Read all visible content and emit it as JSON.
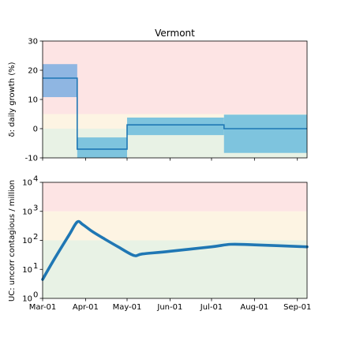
{
  "chart_data": [
    {
      "type": "step",
      "title": "Vermont",
      "ylabel": "δ: daily growth (%)",
      "ylim": [
        -10,
        30
      ],
      "yticks": [
        -10,
        0,
        10,
        20,
        30
      ],
      "xlim": [
        "2020-03-01",
        "2020-09-08"
      ],
      "xticks": [
        "2020-03-01",
        "2020-04-01",
        "2020-05-01",
        "2020-06-01",
        "2020-07-01",
        "2020-08-01",
        "2020-09-01"
      ],
      "background_bands": [
        {
          "y0": 5,
          "y1": 30,
          "color": "#fde4e4"
        },
        {
          "y0": 0,
          "y1": 5,
          "color": "#fdf4e3"
        },
        {
          "y0": -10,
          "y1": 0,
          "color": "#e8f2e5"
        }
      ],
      "segments": [
        {
          "start": "2020-03-01",
          "end": "2020-03-26",
          "value": 17.3,
          "low": 10.8,
          "high": 22.1,
          "band_color": "#8fb6e2"
        },
        {
          "start": "2020-03-26",
          "end": "2020-05-01",
          "value": -7.0,
          "low": -10.8,
          "high": -3.0,
          "band_color": "#7ec4de"
        },
        {
          "start": "2020-05-01",
          "end": "2020-07-10",
          "value": 1.3,
          "low": -2.2,
          "high": 3.8,
          "band_color": "#7ec4de"
        },
        {
          "start": "2020-07-10",
          "end": "2020-09-08",
          "value": 0.0,
          "low": -8.3,
          "high": 4.8,
          "band_color": "#7ec4de"
        }
      ],
      "line_color": "#1f77b4"
    },
    {
      "type": "line",
      "ylabel": "UC: uncorr contagious / million",
      "yscale": "log",
      "ylim": [
        1,
        10000
      ],
      "yticks": [
        {
          "value": 1,
          "base": "10",
          "exp": "0"
        },
        {
          "value": 10,
          "base": "10",
          "exp": "1"
        },
        {
          "value": 100,
          "base": "10",
          "exp": "2"
        },
        {
          "value": 1000,
          "base": "10",
          "exp": "3"
        },
        {
          "value": 10000,
          "base": "10",
          "exp": "4"
        }
      ],
      "xlim": [
        "2020-03-01",
        "2020-09-08"
      ],
      "xticks": [
        {
          "date": "2020-03-01",
          "label": "Mar-01"
        },
        {
          "date": "2020-04-01",
          "label": "Apr-01"
        },
        {
          "date": "2020-05-01",
          "label": "May-01"
        },
        {
          "date": "2020-06-01",
          "label": "Jun-01"
        },
        {
          "date": "2020-07-01",
          "label": "Jul-01"
        },
        {
          "date": "2020-08-01",
          "label": "Aug-01"
        },
        {
          "date": "2020-09-01",
          "label": "Sep-01"
        }
      ],
      "background_bands": [
        {
          "y0": 1000,
          "y1": 10000,
          "color": "#fde4e4"
        },
        {
          "y0": 100,
          "y1": 1000,
          "color": "#fdf4e3"
        },
        {
          "y0": 1,
          "y1": 100,
          "color": "#e8f2e5"
        }
      ],
      "series": [
        {
          "color": "#1f77b4",
          "x": [
            "2020-03-01",
            "2020-03-10",
            "2020-03-20",
            "2020-03-26",
            "2020-03-30",
            "2020-04-06",
            "2020-04-15",
            "2020-04-25",
            "2020-05-06",
            "2020-05-12",
            "2020-06-01",
            "2020-07-01",
            "2020-07-15",
            "2020-08-01",
            "2020-09-08"
          ],
          "y": [
            4.5,
            25,
            150,
            430,
            350,
            200,
            110,
            58,
            30,
            34,
            42,
            60,
            73,
            70,
            60
          ]
        }
      ]
    }
  ]
}
